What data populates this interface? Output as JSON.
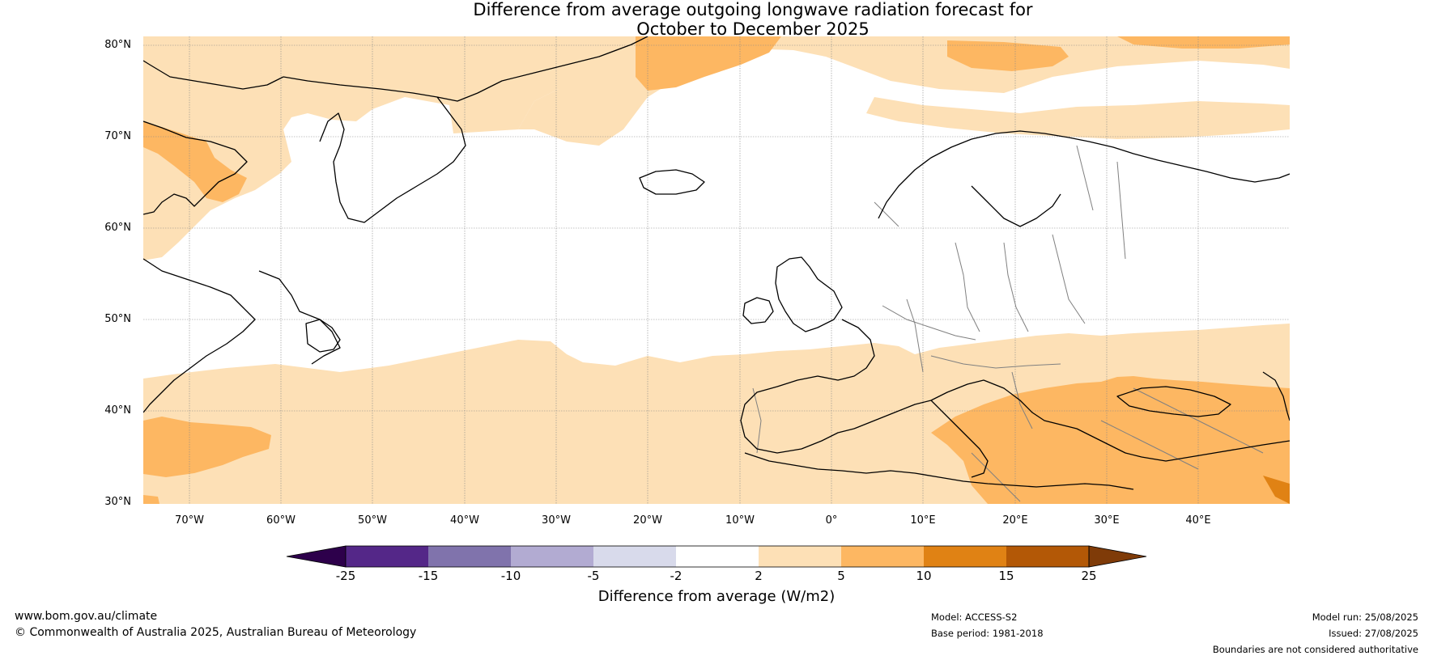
{
  "title": {
    "line1": "Difference from average outgoing longwave radiation forecast for",
    "line2": "October to December 2025"
  },
  "map": {
    "lat_labels": [
      "80°N",
      "70°N",
      "60°N",
      "50°N",
      "40°N",
      "30°N"
    ],
    "lon_labels": [
      "70°W",
      "60°W",
      "50°W",
      "40°W",
      "30°W",
      "20°W",
      "10°W",
      "0°",
      "10°E",
      "20°E",
      "30°E",
      "40°E"
    ],
    "colors": {
      "band_2_5": "#fde0b6",
      "band_5_10": "#fdb762",
      "band_10_15": "#e08214",
      "coast": "#000000",
      "border": "#808080",
      "grid": "#888888"
    }
  },
  "colorbar": {
    "ticks": [
      "-25",
      "-15",
      "-10",
      "-5",
      "-2",
      "2",
      "5",
      "10",
      "15",
      "25"
    ],
    "colors": [
      "#2d004b",
      "#542788",
      "#8073ac",
      "#b2abd2",
      "#d8daeb",
      "#ffffff",
      "#fde0b6",
      "#fdb762",
      "#e08214",
      "#b35806",
      "#7f3b08"
    ],
    "label": "Difference from average (W/m2)"
  },
  "footer": {
    "website": "www.bom.gov.au/climate",
    "copyright": "© Commonwealth of Australia 2025, Australian Bureau of Meteorology",
    "model": "Model: ACCESS-S2",
    "base_period": "Base period: 1981-2018",
    "model_run": "Model run: 25/08/2025",
    "issued": "Issued: 27/08/2025",
    "disclaimer": "Boundaries are not considered authoritative"
  }
}
